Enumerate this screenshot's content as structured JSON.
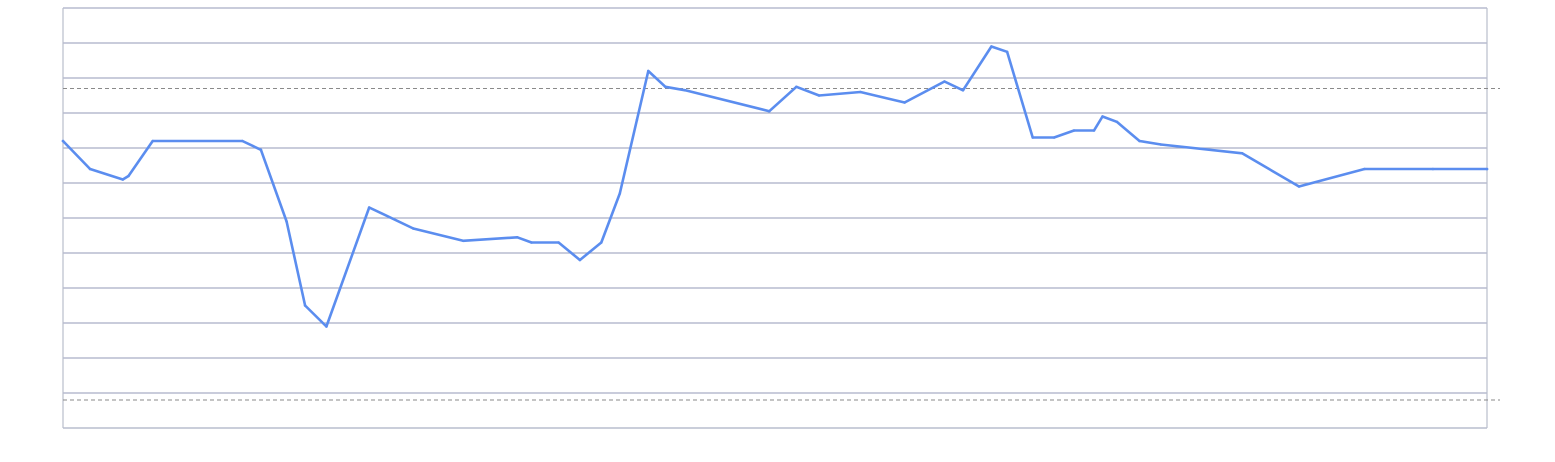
{
  "chart_data": {
    "type": "line",
    "title": "",
    "xlabel": "",
    "ylabel": "",
    "ylim": [
      0,
      12
    ],
    "xlim": [
      0,
      100
    ],
    "grid": true,
    "reference_lines": [
      9.7,
      0.8
    ],
    "series": [
      {
        "color": "#5b8def",
        "x": [
          0,
          1.9,
          4.2,
          4.6,
          6.3,
          12.6,
          13.9,
          15.7,
          17.0,
          18.5,
          21.5,
          24.6,
          28.1,
          31.9,
          32.9,
          34.8,
          36.3,
          37.8,
          39.1,
          40.3,
          41.1,
          42.3,
          43.7,
          49.6,
          51.5,
          53.1,
          56.0,
          59.1,
          61.9,
          63.2,
          65.2,
          66.3,
          68.1,
          69.6,
          71.0,
          72.4,
          73.0,
          74.0,
          75.6,
          77.1,
          82.8,
          86.8,
          91.4,
          96.2,
          100.0
        ],
        "y": [
          8.2,
          7.4,
          7.1,
          7.2,
          8.2,
          8.2,
          7.95,
          5.9,
          3.5,
          2.9,
          6.3,
          5.7,
          5.35,
          5.45,
          5.3,
          5.3,
          4.8,
          5.3,
          6.7,
          8.8,
          10.2,
          9.75,
          9.65,
          9.05,
          9.75,
          9.5,
          9.6,
          9.3,
          9.9,
          9.65,
          10.9,
          10.75,
          8.3,
          8.3,
          8.5,
          8.5,
          8.9,
          8.75,
          8.2,
          8.1,
          7.85,
          6.9,
          7.4,
          7.4,
          7.4
        ]
      }
    ]
  }
}
